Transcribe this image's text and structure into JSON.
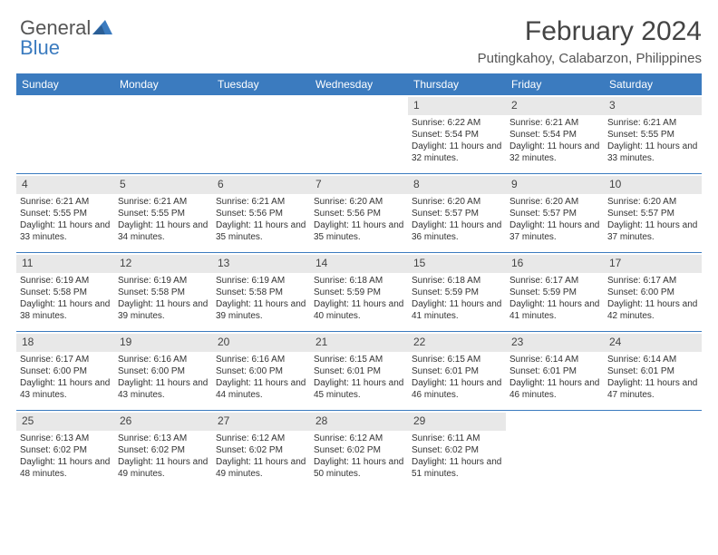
{
  "brand": {
    "name_gray": "General",
    "name_blue": "Blue"
  },
  "header": {
    "month_title": "February 2024",
    "location": "Putingkahoy, Calabarzon, Philippines"
  },
  "colors": {
    "header_bg": "#3b7bbf",
    "header_text": "#ffffff",
    "daynum_bg": "#e8e8e8",
    "border": "#3b7bbf",
    "text": "#333333",
    "page_bg": "#ffffff"
  },
  "day_names": [
    "Sunday",
    "Monday",
    "Tuesday",
    "Wednesday",
    "Thursday",
    "Friday",
    "Saturday"
  ],
  "weeks": [
    [
      {
        "day": "",
        "sunrise": "",
        "sunset": "",
        "daylight": ""
      },
      {
        "day": "",
        "sunrise": "",
        "sunset": "",
        "daylight": ""
      },
      {
        "day": "",
        "sunrise": "",
        "sunset": "",
        "daylight": ""
      },
      {
        "day": "",
        "sunrise": "",
        "sunset": "",
        "daylight": ""
      },
      {
        "day": "1",
        "sunrise": "Sunrise: 6:22 AM",
        "sunset": "Sunset: 5:54 PM",
        "daylight": "Daylight: 11 hours and 32 minutes."
      },
      {
        "day": "2",
        "sunrise": "Sunrise: 6:21 AM",
        "sunset": "Sunset: 5:54 PM",
        "daylight": "Daylight: 11 hours and 32 minutes."
      },
      {
        "day": "3",
        "sunrise": "Sunrise: 6:21 AM",
        "sunset": "Sunset: 5:55 PM",
        "daylight": "Daylight: 11 hours and 33 minutes."
      }
    ],
    [
      {
        "day": "4",
        "sunrise": "Sunrise: 6:21 AM",
        "sunset": "Sunset: 5:55 PM",
        "daylight": "Daylight: 11 hours and 33 minutes."
      },
      {
        "day": "5",
        "sunrise": "Sunrise: 6:21 AM",
        "sunset": "Sunset: 5:55 PM",
        "daylight": "Daylight: 11 hours and 34 minutes."
      },
      {
        "day": "6",
        "sunrise": "Sunrise: 6:21 AM",
        "sunset": "Sunset: 5:56 PM",
        "daylight": "Daylight: 11 hours and 35 minutes."
      },
      {
        "day": "7",
        "sunrise": "Sunrise: 6:20 AM",
        "sunset": "Sunset: 5:56 PM",
        "daylight": "Daylight: 11 hours and 35 minutes."
      },
      {
        "day": "8",
        "sunrise": "Sunrise: 6:20 AM",
        "sunset": "Sunset: 5:57 PM",
        "daylight": "Daylight: 11 hours and 36 minutes."
      },
      {
        "day": "9",
        "sunrise": "Sunrise: 6:20 AM",
        "sunset": "Sunset: 5:57 PM",
        "daylight": "Daylight: 11 hours and 37 minutes."
      },
      {
        "day": "10",
        "sunrise": "Sunrise: 6:20 AM",
        "sunset": "Sunset: 5:57 PM",
        "daylight": "Daylight: 11 hours and 37 minutes."
      }
    ],
    [
      {
        "day": "11",
        "sunrise": "Sunrise: 6:19 AM",
        "sunset": "Sunset: 5:58 PM",
        "daylight": "Daylight: 11 hours and 38 minutes."
      },
      {
        "day": "12",
        "sunrise": "Sunrise: 6:19 AM",
        "sunset": "Sunset: 5:58 PM",
        "daylight": "Daylight: 11 hours and 39 minutes."
      },
      {
        "day": "13",
        "sunrise": "Sunrise: 6:19 AM",
        "sunset": "Sunset: 5:58 PM",
        "daylight": "Daylight: 11 hours and 39 minutes."
      },
      {
        "day": "14",
        "sunrise": "Sunrise: 6:18 AM",
        "sunset": "Sunset: 5:59 PM",
        "daylight": "Daylight: 11 hours and 40 minutes."
      },
      {
        "day": "15",
        "sunrise": "Sunrise: 6:18 AM",
        "sunset": "Sunset: 5:59 PM",
        "daylight": "Daylight: 11 hours and 41 minutes."
      },
      {
        "day": "16",
        "sunrise": "Sunrise: 6:17 AM",
        "sunset": "Sunset: 5:59 PM",
        "daylight": "Daylight: 11 hours and 41 minutes."
      },
      {
        "day": "17",
        "sunrise": "Sunrise: 6:17 AM",
        "sunset": "Sunset: 6:00 PM",
        "daylight": "Daylight: 11 hours and 42 minutes."
      }
    ],
    [
      {
        "day": "18",
        "sunrise": "Sunrise: 6:17 AM",
        "sunset": "Sunset: 6:00 PM",
        "daylight": "Daylight: 11 hours and 43 minutes."
      },
      {
        "day": "19",
        "sunrise": "Sunrise: 6:16 AM",
        "sunset": "Sunset: 6:00 PM",
        "daylight": "Daylight: 11 hours and 43 minutes."
      },
      {
        "day": "20",
        "sunrise": "Sunrise: 6:16 AM",
        "sunset": "Sunset: 6:00 PM",
        "daylight": "Daylight: 11 hours and 44 minutes."
      },
      {
        "day": "21",
        "sunrise": "Sunrise: 6:15 AM",
        "sunset": "Sunset: 6:01 PM",
        "daylight": "Daylight: 11 hours and 45 minutes."
      },
      {
        "day": "22",
        "sunrise": "Sunrise: 6:15 AM",
        "sunset": "Sunset: 6:01 PM",
        "daylight": "Daylight: 11 hours and 46 minutes."
      },
      {
        "day": "23",
        "sunrise": "Sunrise: 6:14 AM",
        "sunset": "Sunset: 6:01 PM",
        "daylight": "Daylight: 11 hours and 46 minutes."
      },
      {
        "day": "24",
        "sunrise": "Sunrise: 6:14 AM",
        "sunset": "Sunset: 6:01 PM",
        "daylight": "Daylight: 11 hours and 47 minutes."
      }
    ],
    [
      {
        "day": "25",
        "sunrise": "Sunrise: 6:13 AM",
        "sunset": "Sunset: 6:02 PM",
        "daylight": "Daylight: 11 hours and 48 minutes."
      },
      {
        "day": "26",
        "sunrise": "Sunrise: 6:13 AM",
        "sunset": "Sunset: 6:02 PM",
        "daylight": "Daylight: 11 hours and 49 minutes."
      },
      {
        "day": "27",
        "sunrise": "Sunrise: 6:12 AM",
        "sunset": "Sunset: 6:02 PM",
        "daylight": "Daylight: 11 hours and 49 minutes."
      },
      {
        "day": "28",
        "sunrise": "Sunrise: 6:12 AM",
        "sunset": "Sunset: 6:02 PM",
        "daylight": "Daylight: 11 hours and 50 minutes."
      },
      {
        "day": "29",
        "sunrise": "Sunrise: 6:11 AM",
        "sunset": "Sunset: 6:02 PM",
        "daylight": "Daylight: 11 hours and 51 minutes."
      },
      {
        "day": "",
        "sunrise": "",
        "sunset": "",
        "daylight": ""
      },
      {
        "day": "",
        "sunrise": "",
        "sunset": "",
        "daylight": ""
      }
    ]
  ]
}
